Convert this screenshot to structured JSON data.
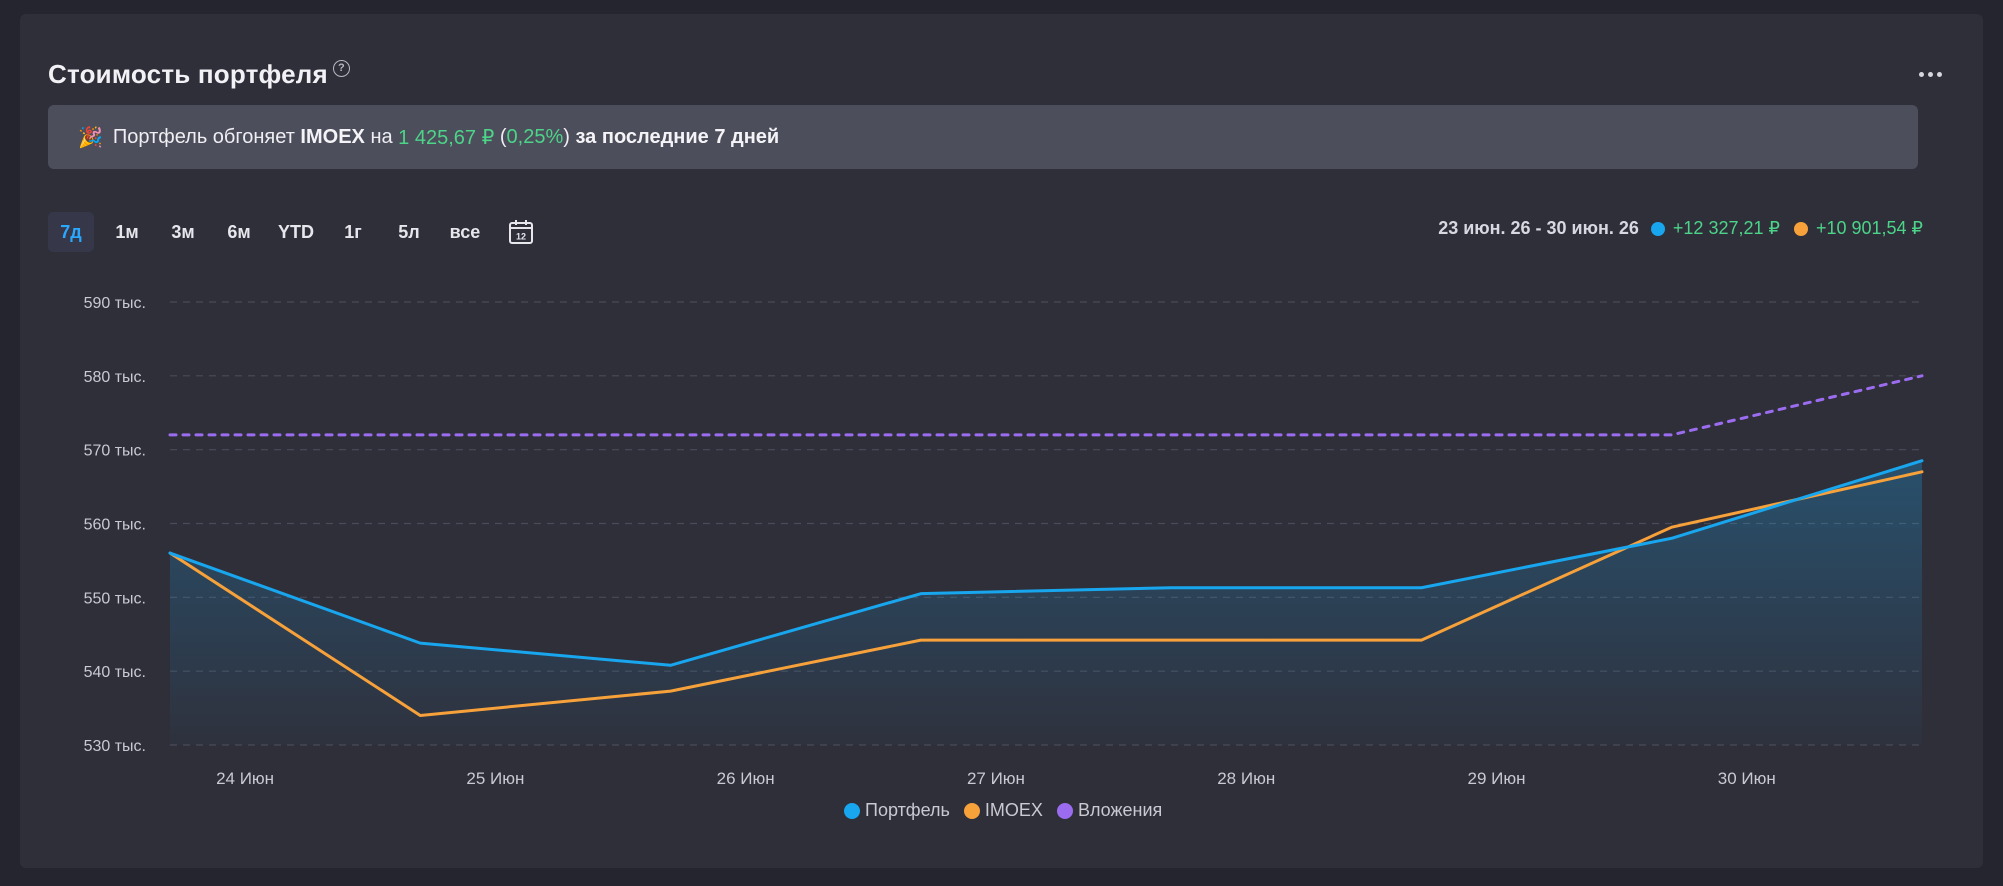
{
  "header": {
    "title": "Стоимость портфеля",
    "help_glyph": "?"
  },
  "banner": {
    "prefix": "Портфель обгоняет",
    "index": "IMOEX",
    "on": "на",
    "amount": "1 425,67 ₽",
    "open_paren": "(",
    "percent": "0,25%",
    "close_paren": ")",
    "suffix": "за последние 7 дней"
  },
  "periods": [
    {
      "label": "7д",
      "active": true
    },
    {
      "label": "1м",
      "active": false
    },
    {
      "label": "3м",
      "active": false
    },
    {
      "label": "6м",
      "active": false
    },
    {
      "label": "YTD",
      "active": false
    },
    {
      "label": "1г",
      "active": false
    },
    {
      "label": "5л",
      "active": false
    },
    {
      "label": "все",
      "active": false
    }
  ],
  "calendar_day": "12",
  "range": {
    "dates": "23 июн. 26 - 30 июн. 26",
    "portfolio_change": "+12 327,21 ₽",
    "imoex_change": "+10 901,54 ₽"
  },
  "colors": {
    "portfolio": "#18a6ee",
    "imoex": "#f7a13b",
    "investments": "#9b6cf0",
    "accent_green": "#4cd489"
  },
  "chart_data": {
    "type": "line",
    "x": [
      0,
      1,
      2,
      3,
      4,
      5,
      6,
      7
    ],
    "xtick_labels": [
      "24 Июн",
      "25 Июн",
      "26 Июн",
      "27 Июн",
      "28 Июн",
      "29 Июн",
      "30 Июн"
    ],
    "xtick_positions": [
      0.3,
      1.3,
      2.3,
      3.3,
      4.3,
      5.3,
      6.3
    ],
    "xlim": [
      0,
      7
    ],
    "ylim": [
      530,
      590
    ],
    "yticks": [
      590,
      580,
      570,
      560,
      550,
      540,
      530
    ],
    "ytick_labels": [
      "590 тыс.",
      "580 тыс.",
      "570 тыс.",
      "560 тыс.",
      "550 тыс.",
      "540 тыс.",
      "530 тыс."
    ],
    "grid": true,
    "legend_position": "bottom-center",
    "series": [
      {
        "name": "Портфель",
        "values": [
          556.0,
          543.8,
          540.8,
          550.5,
          551.3,
          551.3,
          558.0,
          568.5
        ]
      },
      {
        "name": "IMOEX",
        "values": [
          556.0,
          534.0,
          537.3,
          544.2,
          544.2,
          544.2,
          559.5,
          567.0
        ]
      },
      {
        "name": "Вложения",
        "values": [
          572.0,
          572.0,
          572.0,
          572.0,
          572.0,
          572.0,
          572.0,
          580.0
        ]
      }
    ]
  }
}
